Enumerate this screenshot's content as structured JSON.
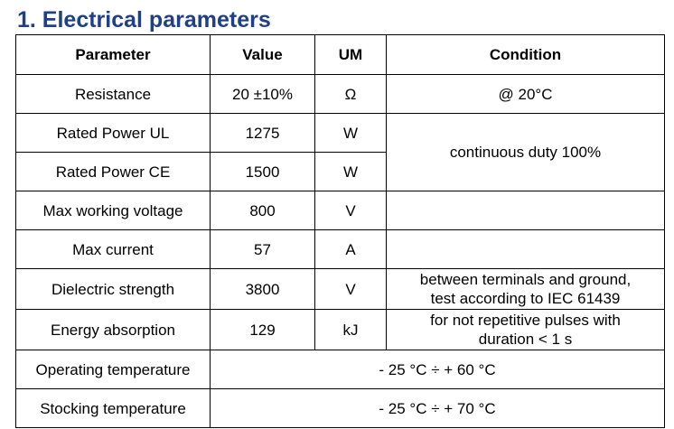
{
  "title": "1. Electrical parameters",
  "accent_color": "#1f3f87",
  "table": {
    "headers": [
      "Parameter",
      "Value",
      "UM",
      "Condition"
    ],
    "rows": {
      "resistance": {
        "parameter": "Resistance",
        "value": "20 ±10%",
        "um": "Ω",
        "condition": "@ 20°C"
      },
      "rated_power_ul": {
        "parameter": "Rated Power UL",
        "value": "1275",
        "um": "W"
      },
      "rated_power_ce": {
        "parameter": "Rated Power CE",
        "value": "1500",
        "um": "W"
      },
      "rated_power_condition": "continuous duty 100%",
      "max_working_voltage": {
        "parameter": "Max working voltage",
        "value": "800",
        "um": "V",
        "condition": ""
      },
      "max_current": {
        "parameter": "Max current",
        "value": "57",
        "um": "A",
        "condition": ""
      },
      "dielectric_strength": {
        "parameter": "Dielectric strength",
        "value": "3800",
        "um": "V",
        "condition_line1": "between terminals and ground,",
        "condition_line2": "test according to IEC 61439"
      },
      "energy_absorption": {
        "parameter": "Energy absorption",
        "value": "129",
        "um": "kJ",
        "condition_line1": "for not repetitive pulses with",
        "condition_line2": "duration < 1 s"
      },
      "operating_temperature": {
        "parameter": "Operating temperature",
        "range": "- 25 °C ÷ + 60 °C"
      },
      "stocking_temperature": {
        "parameter": "Stocking temperature",
        "range": "- 25 °C ÷ + 70 °C"
      }
    }
  }
}
